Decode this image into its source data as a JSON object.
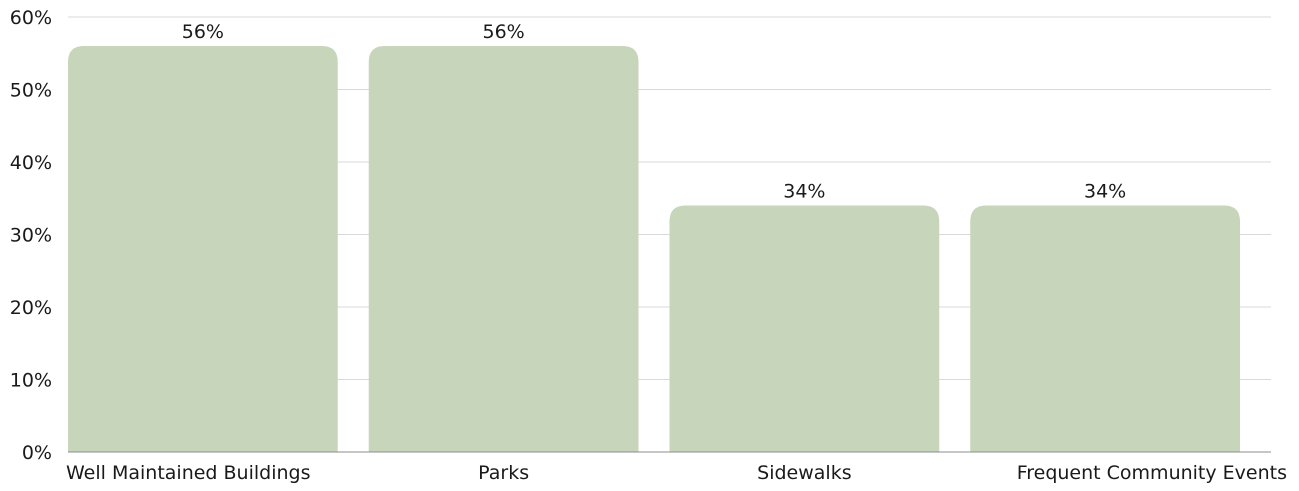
{
  "chart_data": {
    "type": "bar",
    "categories": [
      "Well Maintained Buildings",
      "Parks",
      "Sidewalks",
      "Frequent Community Events"
    ],
    "values": [
      56,
      56,
      34,
      34
    ],
    "data_labels": [
      "56%",
      "56%",
      "34%",
      "34%"
    ],
    "title": "",
    "xlabel": "",
    "ylabel": "",
    "ylim": [
      0,
      60
    ],
    "yticks": [
      0,
      10,
      20,
      30,
      40,
      50,
      60
    ],
    "ytick_labels": [
      "0%",
      "10%",
      "20%",
      "30%",
      "40%",
      "50%",
      "60%"
    ],
    "grid": true,
    "legend": "none",
    "colors": {
      "bar": "#c7d5bb",
      "grid": "#d9d9d9",
      "axis": "#8c8c8c",
      "text": "#1a1a1a"
    }
  }
}
